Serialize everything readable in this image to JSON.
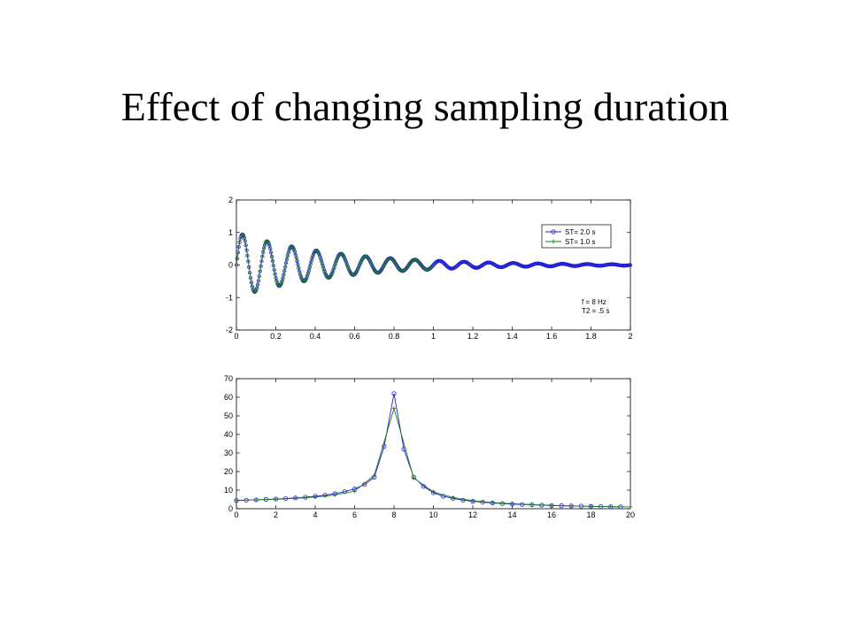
{
  "slide": {
    "title": "Effect of changing sampling duration"
  },
  "colors": {
    "series_blue": "#1f1fd0",
    "series_green": "#1a7a1a",
    "axes": "#000000"
  },
  "chart_data": [
    {
      "type": "line",
      "title": "",
      "xlabel": "",
      "ylabel": "",
      "xlim": [
        0,
        2
      ],
      "ylim": [
        -2,
        2
      ],
      "xticks": [
        "0",
        "0.2",
        "0.4",
        "0.6",
        "0.8",
        "1",
        "1.2",
        "1.4",
        "1.6",
        "1.8",
        "2"
      ],
      "yticks": [
        "-2",
        "-1",
        "0",
        "1",
        "2"
      ],
      "legend_position": "top-right",
      "legend": [
        {
          "label": "ST= 2.0 s",
          "marker": "circle",
          "color": "#1f1fd0"
        },
        {
          "label": "ST= 1.0 s",
          "marker": "plus",
          "color": "#1a7a1a"
        }
      ],
      "annotations": [
        "f = 8 Hz",
        "T2 = .5 s"
      ],
      "series": [
        {
          "name": "ST= 2.0 s",
          "function": "exp(-t/0.5)*sin(2*pi*8*t)",
          "t_start": 0,
          "t_end": 2,
          "dt": 0.004
        },
        {
          "name": "ST= 1.0 s",
          "function": "exp(-t/0.5)*sin(2*pi*8*t)",
          "t_start": 0,
          "t_end": 1,
          "dt": 0.004
        }
      ]
    },
    {
      "type": "line",
      "title": "",
      "xlabel": "",
      "ylabel": "",
      "xlim": [
        0,
        20
      ],
      "ylim": [
        0,
        70
      ],
      "xticks": [
        "0",
        "2",
        "4",
        "6",
        "8",
        "10",
        "12",
        "14",
        "16",
        "18",
        "20"
      ],
      "yticks": [
        "0",
        "10",
        "20",
        "30",
        "40",
        "50",
        "60",
        "70"
      ],
      "series": [
        {
          "name": "ST= 2.0 s",
          "marker": "circle",
          "x": [
            0,
            0.5,
            1,
            1.5,
            2,
            2.5,
            3,
            3.5,
            4,
            4.5,
            5,
            5.5,
            6,
            6.5,
            7,
            7.5,
            8,
            8.5,
            9,
            9.5,
            10,
            10.5,
            11,
            11.5,
            12,
            12.5,
            13,
            13.5,
            14,
            14.5,
            15,
            15.5,
            16,
            16.5,
            17,
            17.5,
            18,
            18.5,
            19,
            19.5
          ],
          "y": [
            4.4,
            4.6,
            4.8,
            5.0,
            5.2,
            5.5,
            5.8,
            6.2,
            6.7,
            7.3,
            8.1,
            9.2,
            10.7,
            13.0,
            17.0,
            33.5,
            62.0,
            32.0,
            17.0,
            12.0,
            8.6,
            6.7,
            5.5,
            4.6,
            4.0,
            3.5,
            3.1,
            2.8,
            2.5,
            2.3,
            2.1,
            1.9,
            1.7,
            1.6,
            1.5,
            1.4,
            1.3,
            1.2,
            1.1,
            1.0
          ]
        },
        {
          "name": "ST= 1.0 s",
          "marker": "plus",
          "x": [
            0,
            1,
            2,
            3,
            4,
            5,
            6,
            7,
            8,
            9,
            10,
            11,
            12,
            13,
            14,
            15,
            16,
            17,
            18,
            19,
            20
          ],
          "y": [
            4.5,
            4.8,
            5.1,
            5.6,
            6.3,
            7.4,
            9.4,
            18.0,
            54.0,
            16.5,
            9.0,
            6.0,
            4.3,
            3.3,
            2.7,
            2.2,
            1.8,
            1.5,
            1.3,
            1.1,
            1.0
          ]
        }
      ]
    }
  ]
}
